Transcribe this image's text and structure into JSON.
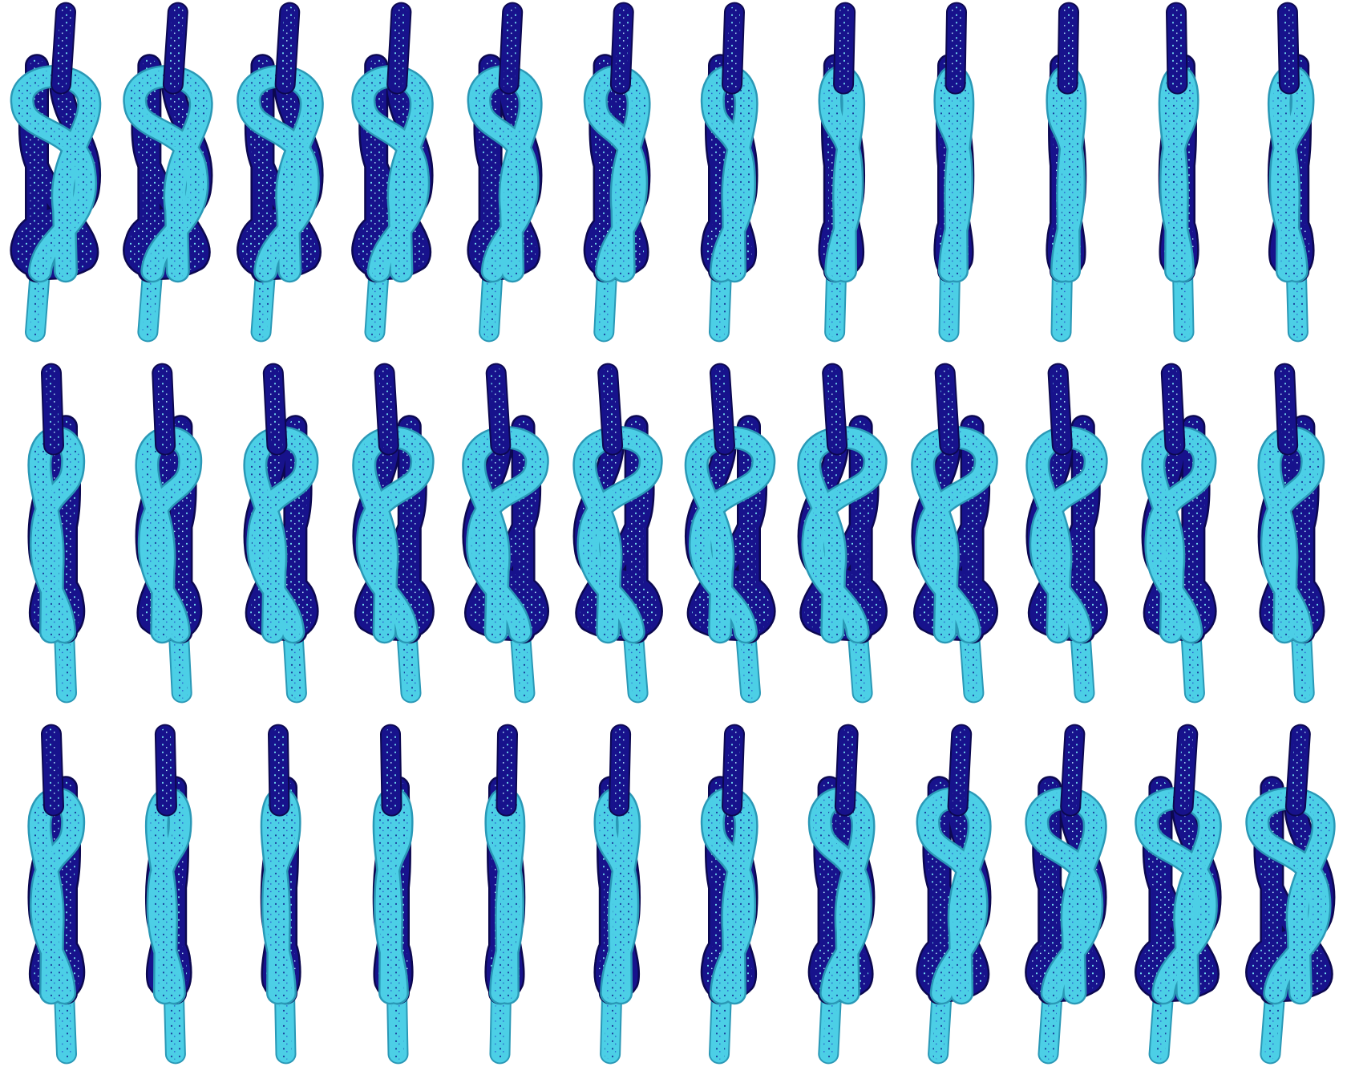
{
  "figure": {
    "layout": {
      "rows": 3,
      "columns": 12,
      "frame_count": 36
    },
    "subject": "figure-eight-bend-knot",
    "colors": {
      "background": "#ffffff",
      "rope_dark": "#17128c",
      "rope_dark_shadow": "#0c0850",
      "rope_dark_fleck": "#6fd6ea",
      "rope_light": "#4ccfe6",
      "rope_light_shadow": "#2a98b6",
      "rope_light_fleck": "#1b3f9e"
    },
    "rotation_sequence_deg": [
      0,
      10,
      20,
      30,
      40,
      50,
      60,
      70,
      80,
      90,
      100,
      110,
      120,
      130,
      140,
      150,
      160,
      170,
      180,
      190,
      200,
      210,
      220,
      230,
      240,
      250,
      260,
      270,
      280,
      290,
      300,
      310,
      320,
      330,
      340,
      350
    ]
  }
}
